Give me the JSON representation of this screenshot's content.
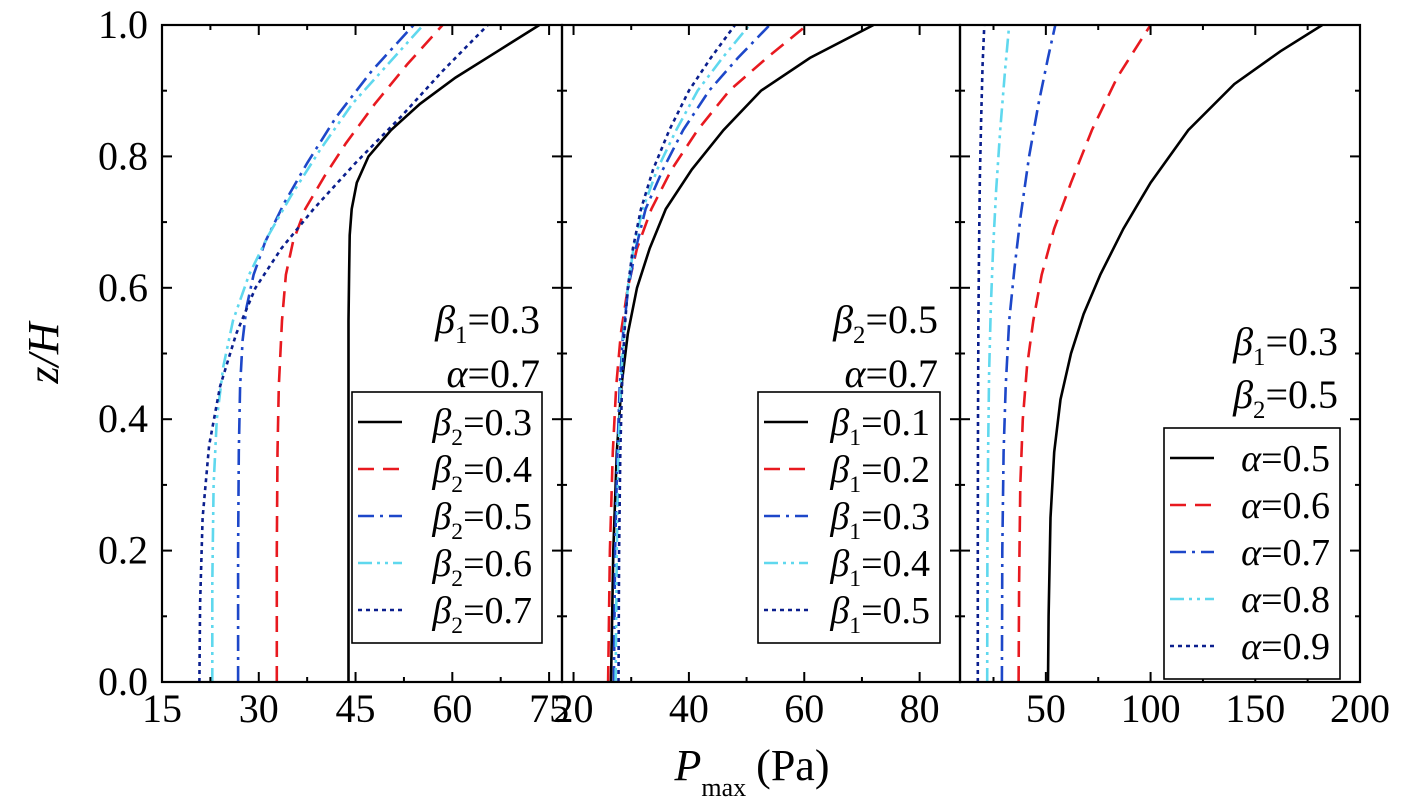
{
  "chart_data": {
    "type": "line",
    "ylabel": "z/H",
    "xlabel_main": "P",
    "xlabel_sub": "max",
    "xlabel_unit": "(Pa)",
    "y_ticks": [
      "0.0",
      "0.2",
      "0.4",
      "0.6",
      "0.8",
      "1.0"
    ],
    "panels": [
      {
        "xlim": [
          15,
          77
        ],
        "x_ticks": [
          15,
          30,
          45,
          60,
          75
        ],
        "ylim": [
          0,
          1
        ],
        "annotations": [
          {
            "sym": "β",
            "sub": "1",
            "val": "=0.3"
          },
          {
            "sym": "α",
            "sub": "",
            "val": "=0.7"
          }
        ],
        "series": [
          {
            "sym": "β",
            "sub": "2",
            "val": "=0.3",
            "color": "#000000",
            "style": "solid",
            "x": [
              43.9,
              43.9,
              43.9,
              43.9,
              44.0,
              44.1,
              44.4,
              45.2,
              47.0,
              50.5,
              55.0,
              60.5,
              67.0,
              73.5
            ],
            "z": [
              0.0,
              0.2,
              0.4,
              0.55,
              0.62,
              0.68,
              0.72,
              0.76,
              0.8,
              0.84,
              0.88,
              0.92,
              0.96,
              1.0
            ]
          },
          {
            "sym": "β",
            "sub": "2",
            "val": "=0.4",
            "color": "#e8191f",
            "style": "dashed",
            "x": [
              32.8,
              32.8,
              32.9,
              33.1,
              33.6,
              34.2,
              35.3,
              37.2,
              40.2,
              43.5,
              48.0,
              53.0,
              58.5
            ],
            "z": [
              0.0,
              0.2,
              0.35,
              0.45,
              0.55,
              0.62,
              0.67,
              0.72,
              0.77,
              0.82,
              0.88,
              0.94,
              1.0
            ]
          },
          {
            "sym": "β",
            "sub": "2",
            "val": "=0.5",
            "color": "#1d47c9",
            "style": "dashdot",
            "x": [
              26.8,
              26.8,
              26.9,
              27.1,
              27.5,
              28.1,
              29.2,
              31.0,
              34.0,
              37.5,
              42.0,
              47.5,
              54.0
            ],
            "z": [
              0.0,
              0.2,
              0.35,
              0.45,
              0.52,
              0.57,
              0.62,
              0.67,
              0.73,
              0.79,
              0.86,
              0.93,
              1.0
            ]
          },
          {
            "sym": "β",
            "sub": "2",
            "val": "=0.6",
            "color": "#5fd8ee",
            "style": "dashdotdot",
            "x": [
              22.8,
              22.8,
              23.0,
              23.5,
              24.5,
              26.0,
              28.5,
              31.5,
              35.0,
              39.5,
              44.5,
              50.0,
              55.5
            ],
            "z": [
              0.0,
              0.15,
              0.3,
              0.4,
              0.48,
              0.55,
              0.62,
              0.68,
              0.74,
              0.81,
              0.88,
              0.94,
              1.0
            ]
          },
          {
            "sym": "β",
            "sub": "2",
            "val": "=0.7",
            "color": "#0b1f8e",
            "style": "dotted",
            "x": [
              20.8,
              20.9,
              21.3,
              22.3,
              24.0,
              26.5,
              29.5,
              33.5,
              38.5,
              45.0,
              52.0,
              58.5,
              65.5
            ],
            "z": [
              0.0,
              0.12,
              0.25,
              0.36,
              0.45,
              0.53,
              0.6,
              0.66,
              0.72,
              0.79,
              0.86,
              0.93,
              1.0
            ]
          }
        ]
      },
      {
        "xlim": [
          18,
          87
        ],
        "x_ticks": [
          20,
          40,
          60,
          80
        ],
        "ylim": [
          0,
          1
        ],
        "annotations": [
          {
            "sym": "β",
            "sub": "2",
            "val": "=0.5"
          },
          {
            "sym": "α",
            "sub": "",
            "val": "=0.7"
          }
        ],
        "series": [
          {
            "sym": "β",
            "sub": "1",
            "val": "=0.1",
            "color": "#000000",
            "style": "solid",
            "x": [
              26.5,
              26.9,
              27.5,
              28.3,
              29.4,
              31.0,
              33.2,
              36.0,
              40.5,
              46.0,
              52.5,
              61.0,
              72.0
            ],
            "z": [
              0.0,
              0.2,
              0.35,
              0.45,
              0.53,
              0.6,
              0.66,
              0.72,
              0.78,
              0.84,
              0.9,
              0.95,
              1.0
            ]
          },
          {
            "sym": "β",
            "sub": "1",
            "val": "=0.2",
            "color": "#e8191f",
            "style": "dashed",
            "x": [
              26.0,
              26.3,
              26.8,
              27.4,
              28.2,
              29.4,
              31.0,
              33.5,
              37.0,
              41.5,
              47.0,
              53.5,
              60.5
            ],
            "z": [
              0.0,
              0.2,
              0.35,
              0.45,
              0.53,
              0.6,
              0.66,
              0.72,
              0.78,
              0.84,
              0.9,
              0.95,
              1.0
            ]
          },
          {
            "sym": "β",
            "sub": "1",
            "val": "=0.3",
            "color": "#1d47c9",
            "style": "dashdot",
            "x": [
              27.0,
              27.2,
              27.6,
              28.0,
              28.6,
              29.5,
              30.8,
              32.5,
              35.5,
              39.0,
              43.5,
              48.5,
              54.0
            ],
            "z": [
              0.0,
              0.2,
              0.35,
              0.45,
              0.53,
              0.6,
              0.66,
              0.72,
              0.78,
              0.84,
              0.9,
              0.95,
              1.0
            ]
          },
          {
            "sym": "β",
            "sub": "1",
            "val": "=0.4",
            "color": "#5fd8ee",
            "style": "dashdotdot",
            "x": [
              27.3,
              27.5,
              27.8,
              28.2,
              28.7,
              29.4,
              30.4,
              32.0,
              34.5,
              37.8,
              41.5,
              45.8,
              50.5
            ],
            "z": [
              0.0,
              0.2,
              0.35,
              0.45,
              0.53,
              0.6,
              0.66,
              0.72,
              0.78,
              0.84,
              0.9,
              0.95,
              1.0
            ]
          },
          {
            "sym": "β",
            "sub": "1",
            "val": "=0.5",
            "color": "#0b1f8e",
            "style": "dotted",
            "x": [
              27.8,
              27.9,
              28.1,
              28.4,
              28.8,
              29.4,
              30.3,
              31.7,
              33.8,
              36.6,
              40.0,
              43.8,
              48.0
            ],
            "z": [
              0.0,
              0.2,
              0.35,
              0.45,
              0.53,
              0.6,
              0.66,
              0.72,
              0.78,
              0.84,
              0.9,
              0.95,
              1.0
            ]
          }
        ]
      },
      {
        "xlim": [
          9,
          200
        ],
        "x_ticks": [
          50,
          100,
          150,
          200
        ],
        "ylim": [
          0,
          1
        ],
        "annotations": [
          {
            "sym": "β",
            "sub": "1",
            "val": "=0.3"
          },
          {
            "sym": "β",
            "sub": "2",
            "val": "=0.5"
          }
        ],
        "series": [
          {
            "sym": "α",
            "sub": "",
            "val": "=0.5",
            "color": "#000000",
            "style": "solid",
            "x": [
              51.0,
              51.3,
              52.2,
              54.0,
              57.0,
              62.0,
              68.0,
              76.0,
              87.0,
              100.0,
              118.0,
              140.0,
              162.0,
              182.0
            ],
            "z": [
              0.0,
              0.1,
              0.25,
              0.35,
              0.43,
              0.5,
              0.56,
              0.62,
              0.69,
              0.76,
              0.84,
              0.91,
              0.96,
              1.0
            ]
          },
          {
            "sym": "α",
            "sub": "",
            "val": "=0.6",
            "color": "#e8191f",
            "style": "dashed",
            "x": [
              37.0,
              37.2,
              37.8,
              39.0,
              41.0,
              44.0,
              48.0,
              54.0,
              62.0,
              72.0,
              84.0,
              96.0,
              100.0
            ],
            "z": [
              0.0,
              0.15,
              0.3,
              0.4,
              0.48,
              0.55,
              0.62,
              0.69,
              0.76,
              0.84,
              0.92,
              0.98,
              1.0
            ]
          },
          {
            "sym": "α",
            "sub": "",
            "val": "=0.7",
            "color": "#1d47c9",
            "style": "dashdot",
            "x": [
              29.0,
              29.2,
              29.8,
              30.8,
              32.5,
              35.0,
              38.0,
              42.0,
              46.5,
              51.0,
              54.5
            ],
            "z": [
              0.0,
              0.2,
              0.35,
              0.45,
              0.55,
              0.63,
              0.71,
              0.8,
              0.88,
              0.95,
              1.0
            ]
          },
          {
            "sym": "α",
            "sub": "",
            "val": "=0.8",
            "color": "#5fd8ee",
            "style": "dashdotdot",
            "x": [
              22.0,
              22.1,
              22.4,
              22.9,
              23.7,
              24.8,
              26.3,
              28.2,
              30.5,
              32.5
            ],
            "z": [
              0.0,
              0.2,
              0.35,
              0.47,
              0.57,
              0.66,
              0.75,
              0.84,
              0.93,
              1.0
            ]
          },
          {
            "sym": "α",
            "sub": "",
            "val": "=0.9",
            "color": "#0b1f8e",
            "style": "dotted",
            "x": [
              17.5,
              17.5,
              17.6,
              17.8,
              18.1,
              18.5,
              19.1,
              19.8,
              20.6
            ],
            "z": [
              0.0,
              0.2,
              0.4,
              0.55,
              0.67,
              0.77,
              0.86,
              0.94,
              1.0
            ]
          }
        ]
      }
    ]
  }
}
